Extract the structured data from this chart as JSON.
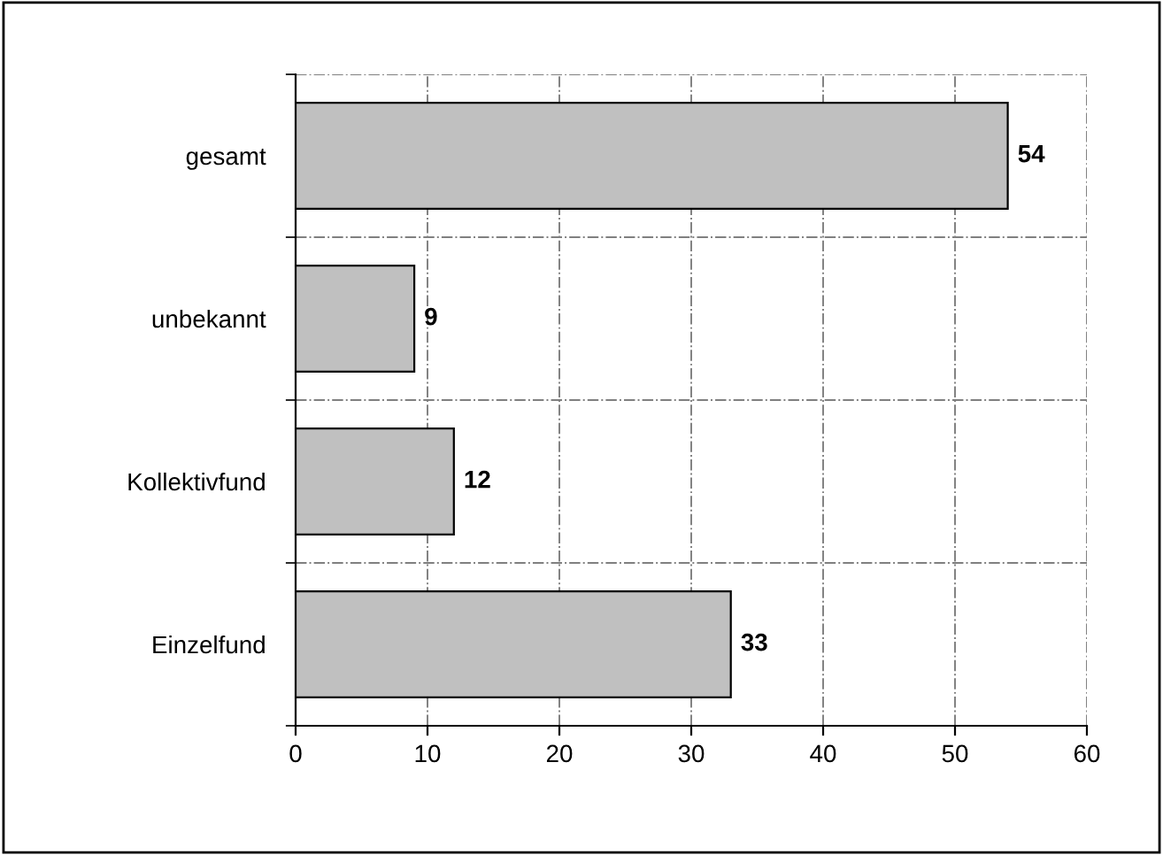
{
  "chart_data": {
    "type": "bar",
    "orientation": "horizontal",
    "categories": [
      "gesamt",
      "unbekannt",
      "Kollektivfund",
      "Einzelfund"
    ],
    "values": [
      54,
      9,
      12,
      33
    ],
    "color": "#c0c0c0",
    "xlim": [
      0,
      60
    ],
    "xticks": [
      0,
      10,
      20,
      30,
      40,
      50,
      60
    ],
    "grid": true,
    "data_labels": true
  }
}
